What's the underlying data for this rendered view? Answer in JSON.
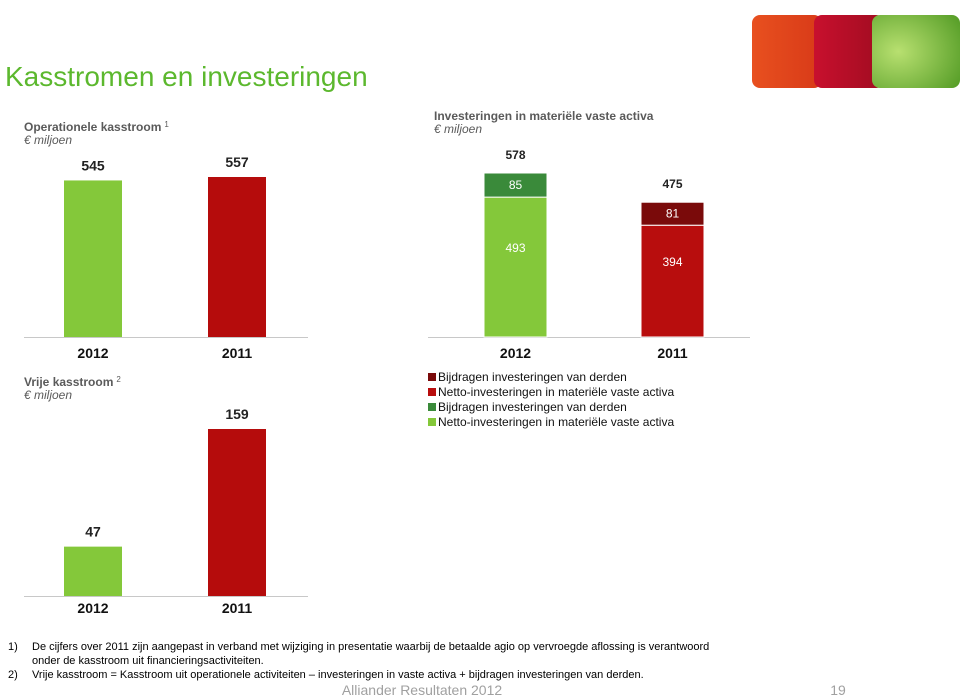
{
  "title": "Kasstromen en investeringen",
  "chart_data": [
    {
      "type": "bar",
      "title": "Operationele kasstroom",
      "title_note": "1",
      "subtitle": "€ miljoen",
      "categories": [
        "2012",
        "2011"
      ],
      "values": [
        545,
        557
      ],
      "colors": [
        "#84c83a",
        "#b50c0c"
      ]
    },
    {
      "type": "stacked_bar",
      "title": "Investeringen in materiële vaste activa",
      "subtitle": "€ miljoen",
      "categories": [
        "2012",
        "2011"
      ],
      "series": [
        {
          "name": "Netto-investeringen in materiële vaste activa",
          "color": "#84c83a",
          "values": [
            493,
            null
          ]
        },
        {
          "name": "Bijdragen investeringen van derden",
          "color": "#3a8a3a",
          "values": [
            85,
            null
          ]
        },
        {
          "name": "Netto-investeringen in materiële vaste activa",
          "color": "#b80d0d",
          "values": [
            null,
            394
          ]
        },
        {
          "name": "Bijdragen investeringen van derden",
          "color": "#7a0a0a",
          "values": [
            null,
            81
          ]
        }
      ],
      "totals": [
        578,
        475
      ]
    },
    {
      "type": "bar",
      "title": "Vrije kasstroom",
      "title_note": "2",
      "subtitle": "€ miljoen",
      "categories": [
        "2012",
        "2011"
      ],
      "values": [
        47,
        159
      ],
      "colors": [
        "#84c83a",
        "#b50c0c"
      ]
    }
  ],
  "footnotes": [
    {
      "marker": "1)",
      "lines": [
        "De cijfers over 2011 zijn aangepast in verband met wijziging in presentatie waarbij de betaalde agio op vervroegde aflossing is verantwoord",
        "onder de kasstroom uit financieringsactiviteiten."
      ]
    },
    {
      "marker": "2)",
      "lines": [
        "Vrije kasstroom = Kasstroom uit operationele activiteiten – investeringen in vaste activa + bijdragen investeringen van derden."
      ]
    }
  ],
  "footer": {
    "text": "Alliander Resultaten 2012",
    "page": "19"
  }
}
